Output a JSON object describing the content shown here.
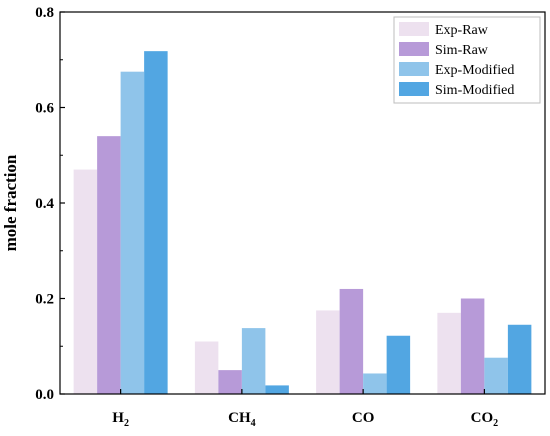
{
  "chart_data": {
    "type": "bar",
    "title": "",
    "xlabel": "",
    "ylabel": "mole fraction",
    "ylim": [
      0,
      0.8
    ],
    "yticks": [
      "0.0",
      "0.2",
      "0.4",
      "0.6",
      "0.8"
    ],
    "categories": [
      {
        "main": "H",
        "sub": "2"
      },
      {
        "main": "CH",
        "sub": "4"
      },
      {
        "main": "CO",
        "sub": ""
      },
      {
        "main": "CO",
        "sub": "2"
      }
    ],
    "series": [
      {
        "name": "Exp-Raw",
        "color": "#ede1ef",
        "values": [
          0.47,
          0.11,
          0.175,
          0.17
        ]
      },
      {
        "name": "Sim-Raw",
        "color": "#b79ad8",
        "values": [
          0.54,
          0.05,
          0.22,
          0.2
        ]
      },
      {
        "name": "Exp-Modified",
        "color": "#8fc4ea",
        "values": [
          0.675,
          0.138,
          0.043,
          0.076
        ]
      },
      {
        "name": "Sim-Modified",
        "color": "#52a6e2",
        "values": [
          0.718,
          0.018,
          0.122,
          0.145
        ]
      }
    ],
    "grid": false,
    "legend_position": "top-right"
  }
}
